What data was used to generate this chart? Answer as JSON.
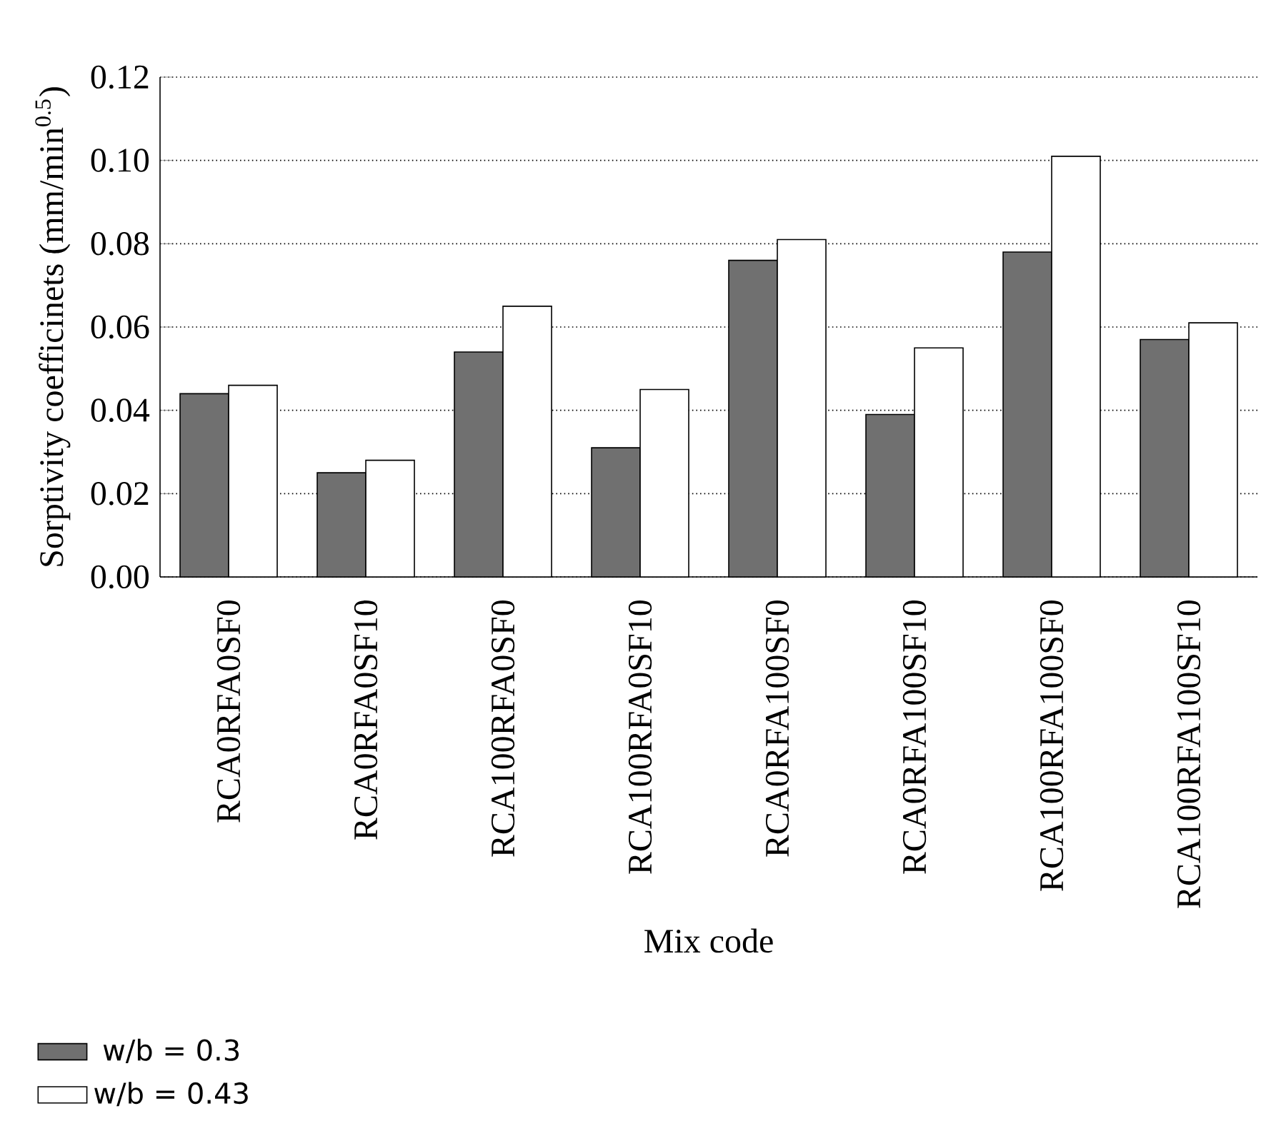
{
  "chart_data": {
    "type": "bar",
    "xlabel": "Mix code",
    "ylabel": "Sorptivity coefficinets (mm/min$^{0.5}$)",
    "categories": [
      "RCA0RFA0SF0",
      "RCA0RFA0SF10",
      "RCA100RFA0SF0",
      "RCA100RFA0SF10",
      "RCA0RFA100SF0",
      "RCA0RFA100SF10",
      "RCA100RFA100SF0",
      "RCA100RFA100SF10"
    ],
    "series": [
      {
        "name": "w/b = 0.3",
        "color": "#707070",
        "values": [
          0.044,
          0.025,
          0.054,
          0.031,
          0.076,
          0.039,
          0.078,
          0.057
        ]
      },
      {
        "name": "w/b = 0.43",
        "color": "#ffffff",
        "values": [
          0.046,
          0.028,
          0.065,
          0.045,
          0.081,
          0.055,
          0.101,
          0.061
        ]
      }
    ],
    "ylim": [
      0,
      0.12
    ],
    "yticks": [
      {
        "value": 0,
        "label": "0.00"
      },
      {
        "value": 0.02,
        "label": "0.02"
      },
      {
        "value": 0.04,
        "label": "0.04"
      },
      {
        "value": 0.06,
        "label": "0.06"
      },
      {
        "value": 0.08,
        "label": "0.08"
      },
      {
        "value": 0.1,
        "label": "0.10"
      },
      {
        "value": 0.12,
        "label": "0.12"
      }
    ],
    "grid": "y",
    "legend": "bottom left"
  }
}
